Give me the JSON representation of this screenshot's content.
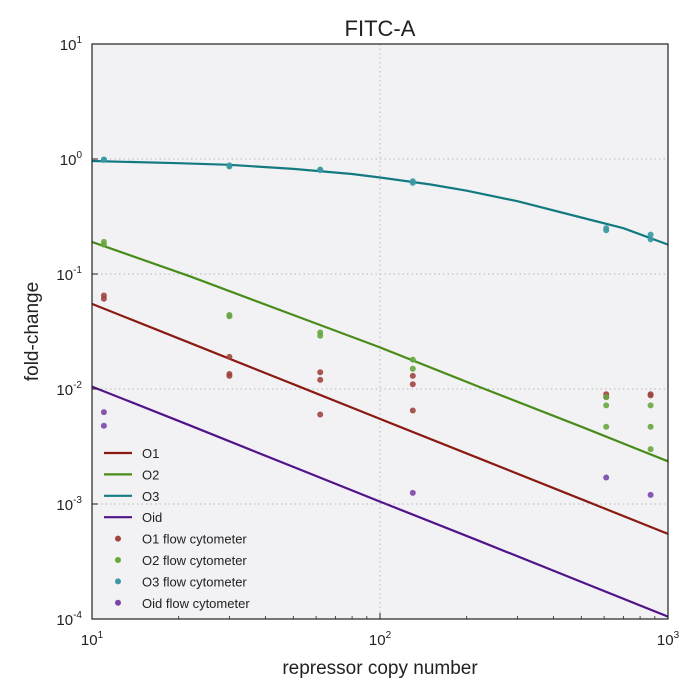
{
  "chart_data": {
    "type": "scatter",
    "title": "FITC-A",
    "xlabel": "repressor copy number",
    "ylabel": "fold-change",
    "xscale": "log",
    "yscale": "log",
    "xlim": [
      10,
      1000
    ],
    "ylim": [
      0.0001,
      10
    ],
    "x_ticks": [
      {
        "value": 10,
        "base": "10",
        "exp": "1"
      },
      {
        "value": 100,
        "base": "10",
        "exp": "2"
      },
      {
        "value": 1000,
        "base": "10",
        "exp": "3"
      }
    ],
    "y_ticks": [
      {
        "value": 0.0001,
        "base": "10",
        "exp": "-4"
      },
      {
        "value": 0.001,
        "base": "10",
        "exp": "-3"
      },
      {
        "value": 0.01,
        "base": "10",
        "exp": "-2"
      },
      {
        "value": 0.1,
        "base": "10",
        "exp": "-1"
      },
      {
        "value": 1,
        "base": "10",
        "exp": "0"
      },
      {
        "value": 10,
        "base": "10",
        "exp": "1"
      }
    ],
    "grid": true,
    "legend_position": "lower-left",
    "background": "#f2f2f5",
    "lines": [
      {
        "name": "O1",
        "color": "#8b1a12",
        "x": [
          10,
          22,
          50,
          100,
          220,
          500,
          1000
        ],
        "y": [
          0.055,
          0.025,
          0.011,
          0.0055,
          0.0025,
          0.0011,
          0.00055
        ]
      },
      {
        "name": "O2",
        "color": "#4a8c1a",
        "x": [
          10,
          22,
          50,
          100,
          220,
          500,
          1000
        ],
        "y": [
          0.19,
          0.095,
          0.044,
          0.023,
          0.0105,
          0.0047,
          0.00235
        ]
      },
      {
        "name": "O3",
        "color": "#137a80",
        "x": [
          10,
          20,
          30,
          50,
          80,
          100,
          150,
          200,
          300,
          500,
          700,
          1000
        ],
        "y": [
          0.96,
          0.92,
          0.89,
          0.82,
          0.74,
          0.69,
          0.6,
          0.53,
          0.43,
          0.31,
          0.25,
          0.18
        ]
      },
      {
        "name": "Oid",
        "color": "#4f148a",
        "x": [
          10,
          22,
          50,
          100,
          220,
          500,
          1000
        ],
        "y": [
          0.0105,
          0.0048,
          0.0021,
          0.00105,
          0.00048,
          0.00021,
          0.000105
        ]
      }
    ],
    "scatter": [
      {
        "name": "O1 flow cytometer",
        "color": "#a0453f",
        "points": [
          [
            11,
            0.065
          ],
          [
            11,
            0.061
          ],
          [
            30,
            0.019
          ],
          [
            30,
            0.0135
          ],
          [
            30,
            0.013
          ],
          [
            62,
            0.014
          ],
          [
            62,
            0.012
          ],
          [
            62,
            0.006
          ],
          [
            130,
            0.013
          ],
          [
            130,
            0.011
          ],
          [
            130,
            0.0065
          ],
          [
            610,
            0.009
          ],
          [
            610,
            0.0085
          ],
          [
            870,
            0.009
          ],
          [
            870,
            0.0088
          ]
        ]
      },
      {
        "name": "O2 flow cytometer",
        "color": "#68a640",
        "points": [
          [
            11,
            0.19
          ],
          [
            11,
            0.18
          ],
          [
            30,
            0.044
          ],
          [
            30,
            0.043
          ],
          [
            62,
            0.031
          ],
          [
            62,
            0.029
          ],
          [
            130,
            0.018
          ],
          [
            130,
            0.015
          ],
          [
            610,
            0.0085
          ],
          [
            610,
            0.0072
          ],
          [
            610,
            0.0047
          ],
          [
            870,
            0.0072
          ],
          [
            870,
            0.0047
          ],
          [
            870,
            0.003
          ]
        ]
      },
      {
        "name": "O3 flow cytometer",
        "color": "#3a99a3",
        "points": [
          [
            11,
            0.99
          ],
          [
            11,
            0.98
          ],
          [
            30,
            0.88
          ],
          [
            30,
            0.86
          ],
          [
            62,
            0.81
          ],
          [
            62,
            0.8
          ],
          [
            130,
            0.64
          ],
          [
            130,
            0.62
          ],
          [
            610,
            0.25
          ],
          [
            610,
            0.24
          ],
          [
            870,
            0.22
          ],
          [
            870,
            0.2
          ]
        ]
      },
      {
        "name": "Oid flow cytometer",
        "color": "#7a45a8",
        "points": [
          [
            11,
            0.0063
          ],
          [
            11,
            0.0048
          ],
          [
            130,
            0.00125
          ],
          [
            610,
            0.0017
          ],
          [
            870,
            0.0012
          ]
        ]
      }
    ]
  }
}
